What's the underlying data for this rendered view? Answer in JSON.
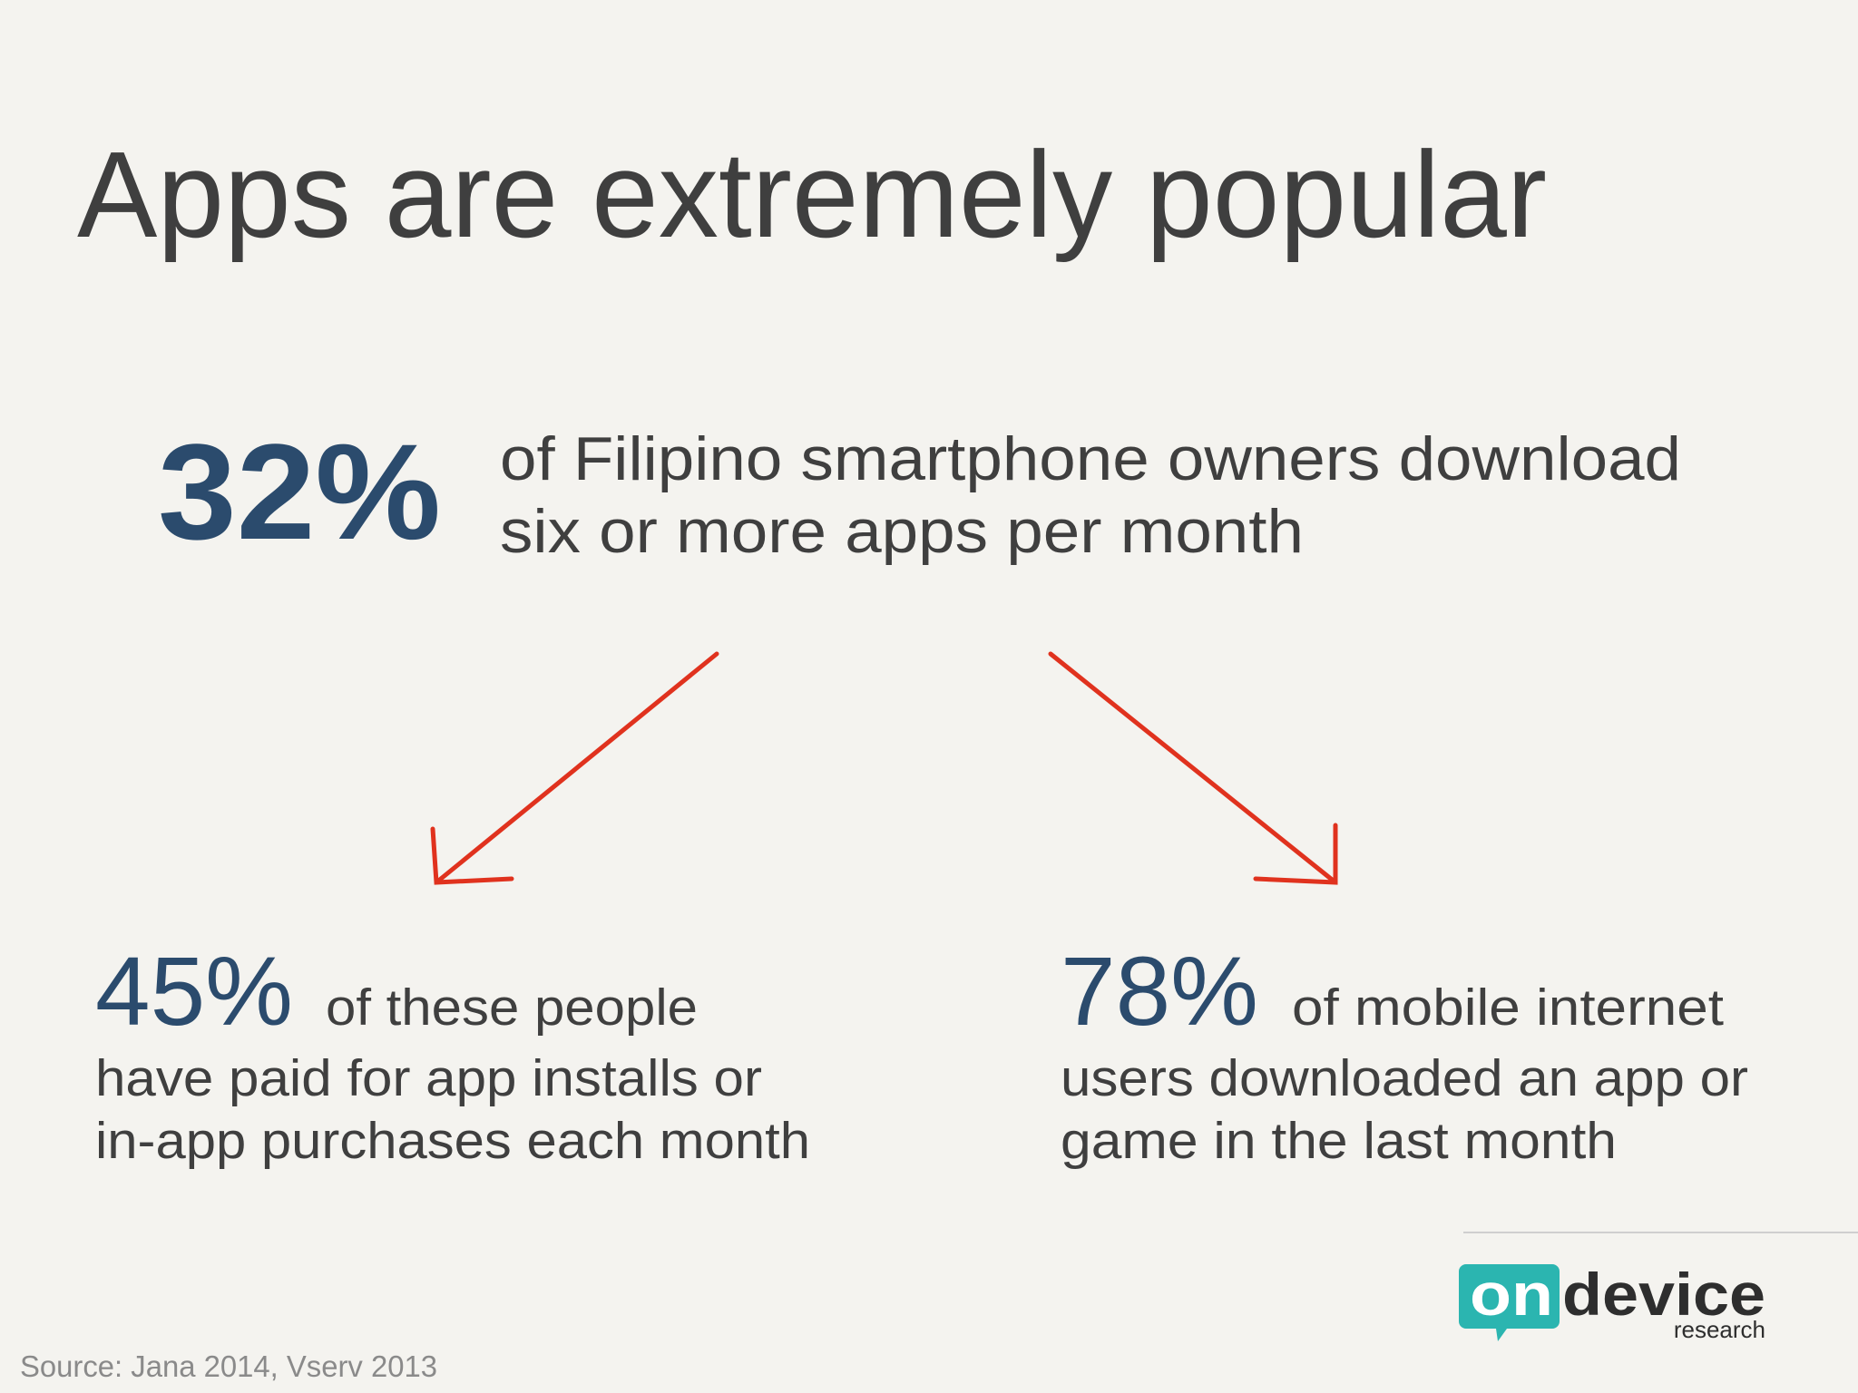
{
  "title": "Apps are extremely popular",
  "headline": {
    "figure": "32%",
    "lines": [
      "of Filipino smartphone owners download",
      "six or more apps per month"
    ]
  },
  "stats": [
    {
      "figure": "45%",
      "lines": [
        "of these people",
        "have paid for app installs or",
        "in-app purchases each month"
      ]
    },
    {
      "figure": "78%",
      "lines": [
        "of mobile internet",
        "users downloaded an app or",
        "game in the last month"
      ]
    }
  ],
  "logo": {
    "on": "on",
    "device": "device",
    "research": "research"
  },
  "source": "Source: Jana 2014, Vserv 2013"
}
